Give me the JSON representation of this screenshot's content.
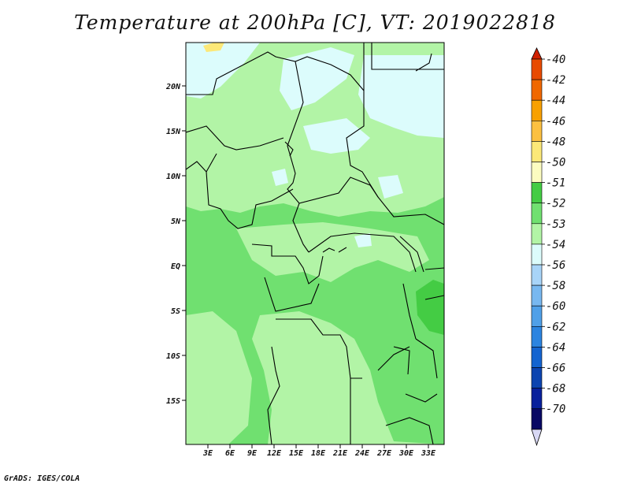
{
  "title": "Temperature at 200hPa [C], VT: 2019022818",
  "credit": "GrADS: IGES/COLA",
  "map": {
    "lat_ticks": [
      "20N",
      "15N",
      "10N",
      "5N",
      "EQ",
      "5S",
      "10S",
      "15S"
    ],
    "lon_ticks": [
      "3E",
      "6E",
      "9E",
      "12E",
      "15E",
      "18E",
      "21E",
      "24E",
      "27E",
      "30E",
      "33E"
    ],
    "field_colors": {
      "band_52": "#44cc44",
      "band_53": "#70e070",
      "band_54": "#b2f4a6",
      "band_56": "#dcfcfc",
      "band_50": "#fce878",
      "boundary": "#000000"
    }
  },
  "colorbar": {
    "labels": [
      "-40",
      "-42",
      "-44",
      "-46",
      "-48",
      "-50",
      "-51",
      "-52",
      "-53",
      "-54",
      "-56",
      "-58",
      "-60",
      "-62",
      "-64",
      "-66",
      "-68",
      "-70"
    ],
    "colors": [
      "#d02000",
      "#e84a00",
      "#f06800",
      "#f8a000",
      "#fcc040",
      "#fce878",
      "#fcfcc0",
      "#44cc44",
      "#70e070",
      "#b2f4a6",
      "#dcfcfc",
      "#a8d4f8",
      "#78b8f0",
      "#50a0e8",
      "#2c84e0",
      "#1464d0",
      "#0c44b0",
      "#08209c",
      "#080864",
      "#d8d8f4"
    ]
  }
}
